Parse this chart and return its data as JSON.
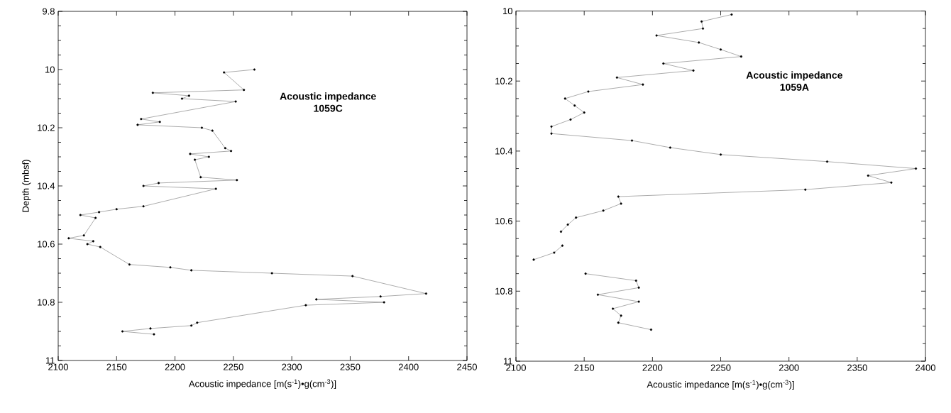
{
  "chart_data": [
    {
      "type": "line",
      "orientation": "horizontal",
      "xlabel": "Acoustic impedance [m(s$^{-1}$)•g(cm$^{-3}$)]",
      "ylabel": "Depth (mbsf)",
      "annotations": [
        "Acoustic impedance",
        "1059C"
      ],
      "marker": "circle",
      "line_style": "solid",
      "grid": false,
      "xlim": [
        2100,
        2450
      ],
      "xticks": [
        2100,
        2150,
        2200,
        2250,
        2300,
        2350,
        2400,
        2450
      ],
      "ylim": [
        11,
        9.8
      ],
      "yticks": [
        9.8,
        10,
        10.2,
        10.4,
        10.6,
        10.8,
        11
      ],
      "x": [
        10.0,
        10.01,
        10.07,
        10.08,
        10.09,
        10.1,
        10.11,
        10.17,
        10.18,
        10.19,
        10.2,
        10.21,
        10.27,
        10.28,
        10.29,
        10.3,
        10.31,
        10.37,
        10.38,
        10.39,
        10.4,
        10.41,
        10.47,
        10.48,
        10.49,
        10.5,
        10.51,
        10.57,
        10.58,
        10.59,
        10.6,
        10.61,
        10.67,
        10.68,
        10.69,
        10.7,
        10.71,
        10.77,
        10.78,
        10.79,
        10.8,
        10.81,
        10.87,
        10.88,
        10.89,
        10.9,
        10.91
      ],
      "series": [
        {
          "color": "#000000",
          "values": [
            2268,
            2242,
            2259,
            2181,
            2212,
            2206,
            2252,
            2171,
            2187,
            2168,
            2223,
            2232,
            2243,
            2248,
            2213,
            2229,
            2217,
            2222,
            2253,
            2186,
            2173,
            2235,
            2173,
            2150,
            2135,
            2119,
            2132,
            2122,
            2109,
            2130,
            2125,
            2136,
            2161,
            2196,
            2214,
            2283,
            2352,
            2415,
            2376,
            2321,
            2379,
            2312,
            2219,
            2214,
            2179,
            2155,
            2182
          ]
        }
      ]
    },
    {
      "type": "line",
      "orientation": "horizontal",
      "xlabel": "Acoustic impedance [m(s$^{-1}$)•g(cm$^{-3}$)]",
      "annotations": [
        "Acoustic impedance",
        "1059A"
      ],
      "marker": "circle",
      "line_style": "solid",
      "grid": false,
      "xlim": [
        2100,
        2400
      ],
      "xticks": [
        2100,
        2150,
        2200,
        2250,
        2300,
        2350,
        2400
      ],
      "ylim": [
        11,
        10
      ],
      "yticks": [
        10,
        10.2,
        10.4,
        10.6,
        10.8,
        11
      ],
      "x": [
        10.01,
        10.03,
        10.05,
        10.07,
        10.09,
        10.11,
        10.13,
        10.15,
        10.17,
        10.19,
        10.21,
        10.23,
        10.25,
        10.27,
        10.29,
        10.31,
        10.33,
        10.35,
        10.37,
        10.39,
        10.41,
        10.43,
        10.45,
        10.47,
        10.49,
        10.51,
        10.53,
        10.55,
        10.57,
        10.59,
        10.61,
        10.63,
        10.65,
        10.67,
        10.69,
        10.71,
        10.73,
        10.75,
        10.77,
        10.79,
        10.81,
        10.83,
        10.85,
        10.87,
        10.89,
        10.91
      ],
      "series": [
        {
          "color": "#000000",
          "values": [
            2258,
            2236,
            2237,
            2203,
            2234,
            2250,
            2265,
            2208,
            2230,
            2174,
            2193,
            2153,
            2136,
            2143,
            2150,
            2140,
            2126,
            2126,
            2185,
            2213,
            2250,
            2328,
            2393,
            2358,
            2375,
            2312,
            2175,
            2177,
            2164,
            2144,
            2138,
            2133,
            null,
            2134,
            2128,
            2113,
            null,
            2151,
            2188,
            2190,
            2160,
            2190,
            2171,
            2177,
            2175,
            2199
          ]
        }
      ]
    }
  ]
}
